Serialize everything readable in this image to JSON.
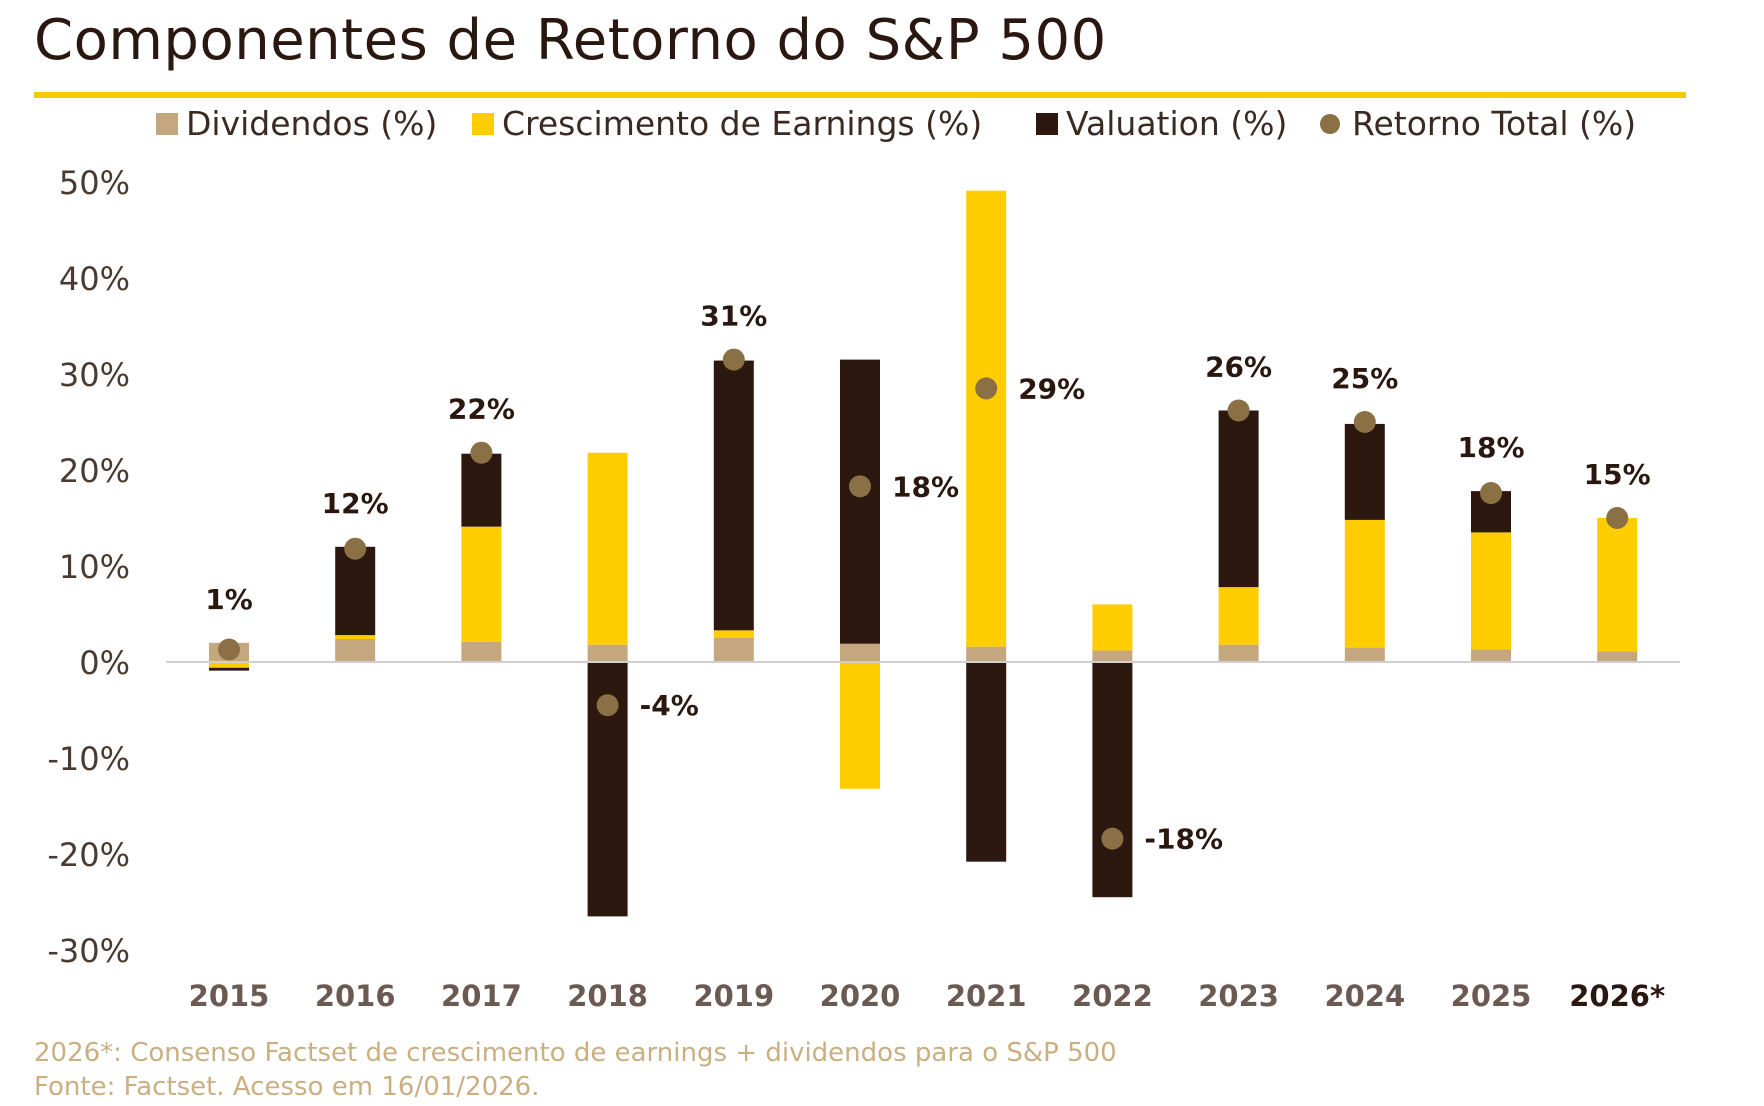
{
  "title": "Componentes de Retorno do S&P 500",
  "colors": {
    "dividendos": "#c4a77f",
    "earnings": "#ffcd00",
    "valuation": "#2d1810",
    "retorno": "#8b6f45",
    "accent_rule": "#f3cb00",
    "footnote": "#c9af82",
    "text_dark": "#2a1710",
    "axis_text": "#4a3a32",
    "year_text": "#6b5a52"
  },
  "legend": [
    {
      "label": "Dividendos (%)",
      "shape": "square",
      "color_key": "dividendos"
    },
    {
      "label": "Crescimento de Earnings (%)",
      "shape": "square",
      "color_key": "earnings"
    },
    {
      "label": "Valuation (%)",
      "shape": "square",
      "color_key": "valuation"
    },
    {
      "label": "Retorno Total (%)",
      "shape": "circle",
      "color_key": "retorno"
    }
  ],
  "chart_data": {
    "type": "bar",
    "stacked": true,
    "categories": [
      "2015",
      "2016",
      "2017",
      "2018",
      "2019",
      "2020",
      "2021",
      "2022",
      "2023",
      "2024",
      "2025",
      "2026*"
    ],
    "series": [
      {
        "name": "Dividendos (%)",
        "values": [
          2.0,
          2.4,
          2.1,
          1.8,
          2.5,
          1.9,
          1.6,
          1.2,
          1.8,
          1.5,
          1.3,
          1.1
        ]
      },
      {
        "name": "Crescimento de Earnings (%)",
        "values": [
          -0.6,
          0.4,
          12.0,
          20.0,
          0.8,
          -13.2,
          47.5,
          4.8,
          6.0,
          13.3,
          12.2,
          13.9
        ]
      },
      {
        "name": "Valuation (%)",
        "values": [
          -0.3,
          9.2,
          7.6,
          -26.5,
          28.1,
          29.6,
          -20.8,
          -24.5,
          18.4,
          10.0,
          4.3,
          0.0
        ]
      }
    ],
    "total": {
      "name": "Retorno Total (%)",
      "values": [
        1.3,
        11.8,
        21.8,
        -4.5,
        31.5,
        18.3,
        28.5,
        -18.4,
        26.2,
        25.0,
        17.6,
        15.0
      ],
      "labels": [
        "1%",
        "12%",
        "22%",
        "-4%",
        "31%",
        "18%",
        "29%",
        "-18%",
        "26%",
        "25%",
        "18%",
        "15%"
      ]
    },
    "y_ticks": [
      "50%",
      "40%",
      "30%",
      "20%",
      "10%",
      "0%",
      "-10%",
      "-20%",
      "-30%"
    ],
    "y_tick_values": [
      50,
      40,
      30,
      20,
      10,
      0,
      -10,
      -20,
      -30
    ],
    "ylim": [
      -30,
      50
    ],
    "title": "Componentes de Retorno do S&P 500",
    "xlabel": "",
    "ylabel": "",
    "grid": false,
    "legend_position": "top"
  },
  "footnotes": {
    "line1": "2026*: Consenso Factset de crescimento de earnings + dividendos para o S&P 500",
    "line2": "Fonte: Factset. Acesso em 16/01/2026."
  }
}
